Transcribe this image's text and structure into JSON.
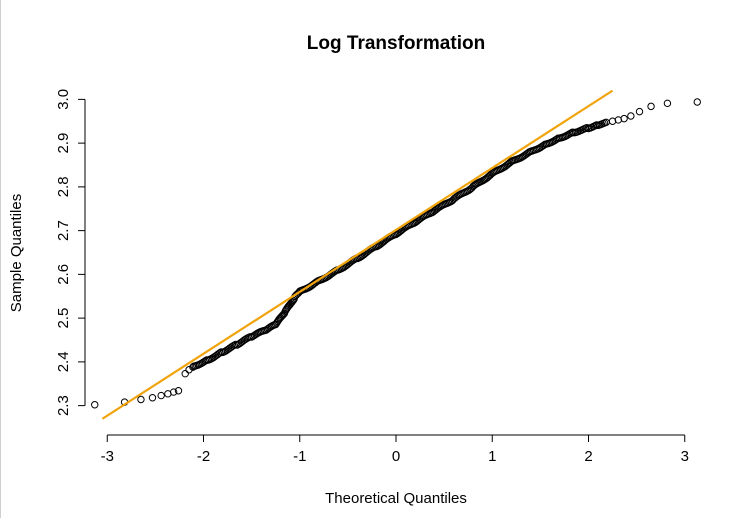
{
  "chart_data": {
    "type": "scatter",
    "subtype": "qq-plot",
    "title": "Log Transformation",
    "xlabel": "Theoretical Quantiles",
    "ylabel": "Sample Quantiles",
    "xlim": [
      -3.2,
      3.2
    ],
    "ylim": [
      2.29,
      3.01
    ],
    "x_ticks": [
      -3,
      -2,
      -1,
      0,
      1,
      2,
      3
    ],
    "x_tick_labels": [
      "-3",
      "-2",
      "-1",
      "0",
      "1",
      "2",
      "3"
    ],
    "y_ticks": [
      2.3,
      2.4,
      2.5,
      2.6,
      2.7,
      2.8,
      2.9,
      3.0
    ],
    "y_tick_labels": [
      "2.3",
      "2.4",
      "2.5",
      "2.6",
      "2.7",
      "2.8",
      "2.9",
      "3.0"
    ],
    "grid": false,
    "reference_line": {
      "label": "qqline",
      "color": "#f0a30a",
      "points": [
        [
          -3.05,
          2.27
        ],
        [
          2.25,
          3.02
        ]
      ]
    },
    "outlier_points": [
      {
        "x": -3.13,
        "y": 2.302
      },
      {
        "x": -2.82,
        "y": 2.308
      },
      {
        "x": -2.65,
        "y": 2.314
      },
      {
        "x": -2.53,
        "y": 2.318
      },
      {
        "x": -2.44,
        "y": 2.323
      },
      {
        "x": -2.37,
        "y": 2.327
      },
      {
        "x": -2.31,
        "y": 2.331
      },
      {
        "x": -2.26,
        "y": 2.334
      },
      {
        "x": -2.19,
        "y": 2.373
      },
      {
        "x": -2.15,
        "y": 2.382
      },
      {
        "x": -2.11,
        "y": 2.388
      },
      {
        "x": 2.25,
        "y": 2.95
      },
      {
        "x": 2.31,
        "y": 2.953
      },
      {
        "x": 2.37,
        "y": 2.956
      },
      {
        "x": 2.44,
        "y": 2.962
      },
      {
        "x": 2.53,
        "y": 2.972
      },
      {
        "x": 2.65,
        "y": 2.984
      },
      {
        "x": 2.82,
        "y": 2.991
      },
      {
        "x": 3.13,
        "y": 2.994
      }
    ],
    "dense_curve": [
      [
        -2.1,
        2.39
      ],
      [
        -1.95,
        2.405
      ],
      [
        -1.8,
        2.423
      ],
      [
        -1.65,
        2.44
      ],
      [
        -1.5,
        2.458
      ],
      [
        -1.35,
        2.473
      ],
      [
        -1.25,
        2.485
      ],
      [
        -1.15,
        2.515
      ],
      [
        -1.05,
        2.548
      ],
      [
        -1.0,
        2.56
      ],
      [
        -0.8,
        2.585
      ],
      [
        -0.6,
        2.61
      ],
      [
        -0.4,
        2.637
      ],
      [
        -0.2,
        2.665
      ],
      [
        0.0,
        2.693
      ],
      [
        0.2,
        2.72
      ],
      [
        0.4,
        2.746
      ],
      [
        0.6,
        2.772
      ],
      [
        0.8,
        2.8
      ],
      [
        1.0,
        2.83
      ],
      [
        1.2,
        2.857
      ],
      [
        1.4,
        2.88
      ],
      [
        1.55,
        2.897
      ],
      [
        1.7,
        2.912
      ],
      [
        1.85,
        2.925
      ],
      [
        2.0,
        2.935
      ],
      [
        2.1,
        2.942
      ],
      [
        2.2,
        2.947
      ]
    ]
  }
}
